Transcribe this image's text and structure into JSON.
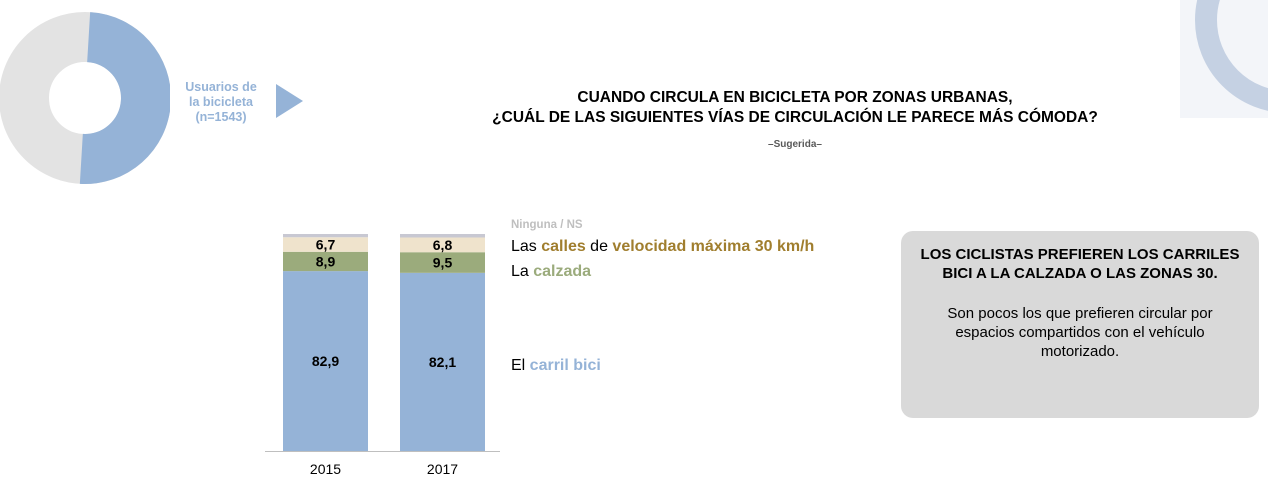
{
  "respondent": {
    "label_lines": [
      "Usuarios de",
      "la bicicleta",
      "(n=1543)"
    ]
  },
  "title": {
    "line1": "CUANDO CIRCULA EN BICICLETA POR ZONAS URBANAS,",
    "line2": "¿CUÁL DE LAS SIGUIENTES VÍAS DE CIRCULACIÓN LE PARECE MÁS CÓMODA?",
    "subtitle": "–Sugerida–"
  },
  "legend": {
    "ninguna": "Ninguna / NS",
    "calles": {
      "pre": "Las ",
      "hl1": "calles",
      "mid": " de ",
      "hl2": "velocidad máxima 30 km/h"
    },
    "calzada": {
      "pre": "La ",
      "hl": "calzada"
    },
    "carril": {
      "pre": "El ",
      "hl": "carril bici"
    }
  },
  "callout": {
    "heading": "LOS CICLISTAS PREFIEREN LOS CARRILES BICI A LA CALZADA O LAS ZONAS 30.",
    "body": "Son pocos los que prefieren circular por espacios compartidos con el vehículo motorizado."
  },
  "colors": {
    "carril": "#95b3d7",
    "calzada": "#9bab7c",
    "calles": "#efe3cc",
    "ninguna": "#c8c8d2",
    "calles_text": "#a07e2e",
    "calzada_text": "#9bab7c",
    "carril_text": "#95b3d7",
    "donut_gray": "#e3e3e3",
    "deco": "#c5d1e3"
  },
  "donut": {
    "highlight_share": 0.5
  },
  "chart_data": {
    "type": "bar",
    "stacked": true,
    "categories": [
      "2015",
      "2017"
    ],
    "ylim": [
      0,
      100
    ],
    "series": [
      {
        "name": "El carril bici",
        "values": [
          82.9,
          82.1
        ],
        "labels": [
          "82,9",
          "82,1"
        ],
        "color_key": "carril"
      },
      {
        "name": "La calzada",
        "values": [
          8.9,
          9.5
        ],
        "labels": [
          "8,9",
          "9,5"
        ],
        "color_key": "calzada"
      },
      {
        "name": "Las calles de velocidad máxima 30 km/h",
        "values": [
          6.7,
          6.8
        ],
        "labels": [
          "6,7",
          "6,8"
        ],
        "color_key": "calles"
      },
      {
        "name": "Ninguna / NS",
        "values": [
          1.5,
          1.6
        ],
        "labels": [
          "",
          ""
        ],
        "color_key": "ninguna"
      }
    ]
  }
}
